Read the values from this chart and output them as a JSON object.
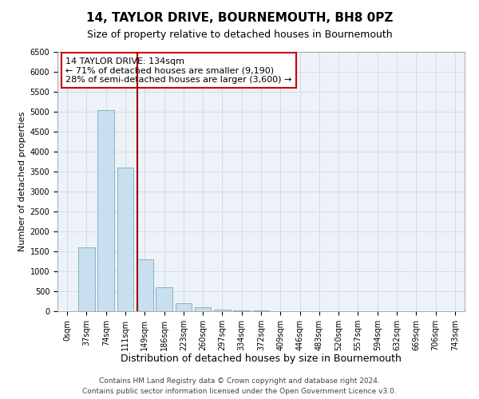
{
  "title": "14, TAYLOR DRIVE, BOURNEMOUTH, BH8 0PZ",
  "subtitle": "Size of property relative to detached houses in Bournemouth",
  "xlabel": "Distribution of detached houses by size in Bournemouth",
  "ylabel": "Number of detached properties",
  "categories": [
    "0sqm",
    "37sqm",
    "74sqm",
    "111sqm",
    "149sqm",
    "186sqm",
    "223sqm",
    "260sqm",
    "297sqm",
    "334sqm",
    "372sqm",
    "409sqm",
    "446sqm",
    "483sqm",
    "520sqm",
    "557sqm",
    "594sqm",
    "632sqm",
    "669sqm",
    "706sqm",
    "743sqm"
  ],
  "values": [
    0,
    1600,
    5050,
    3600,
    1300,
    600,
    200,
    100,
    50,
    30,
    20,
    10,
    5,
    3,
    2,
    1,
    1,
    0,
    0,
    0,
    0
  ],
  "bar_color": "#c8dff0",
  "bar_edge_color": "#7aabb8",
  "vline_color": "#990000",
  "ylim": [
    0,
    6500
  ],
  "yticks": [
    0,
    500,
    1000,
    1500,
    2000,
    2500,
    3000,
    3500,
    4000,
    4500,
    5000,
    5500,
    6000,
    6500
  ],
  "annotation_title": "14 TAYLOR DRIVE: 134sqm",
  "annotation_line1": "← 71% of detached houses are smaller (9,190)",
  "annotation_line2": "28% of semi-detached houses are larger (3,600) →",
  "annotation_box_color": "#ffffff",
  "annotation_box_edge": "#cc0000",
  "footer1": "Contains HM Land Registry data © Crown copyright and database right 2024.",
  "footer2": "Contains public sector information licensed under the Open Government Licence v3.0.",
  "title_fontsize": 11,
  "subtitle_fontsize": 9,
  "xlabel_fontsize": 9,
  "ylabel_fontsize": 8,
  "tick_fontsize": 7,
  "annotation_fontsize": 8,
  "footer_fontsize": 6.5,
  "grid_color": "#ccd8e8",
  "background_color": "#ffffff",
  "plot_bg_color": "#edf2f8"
}
